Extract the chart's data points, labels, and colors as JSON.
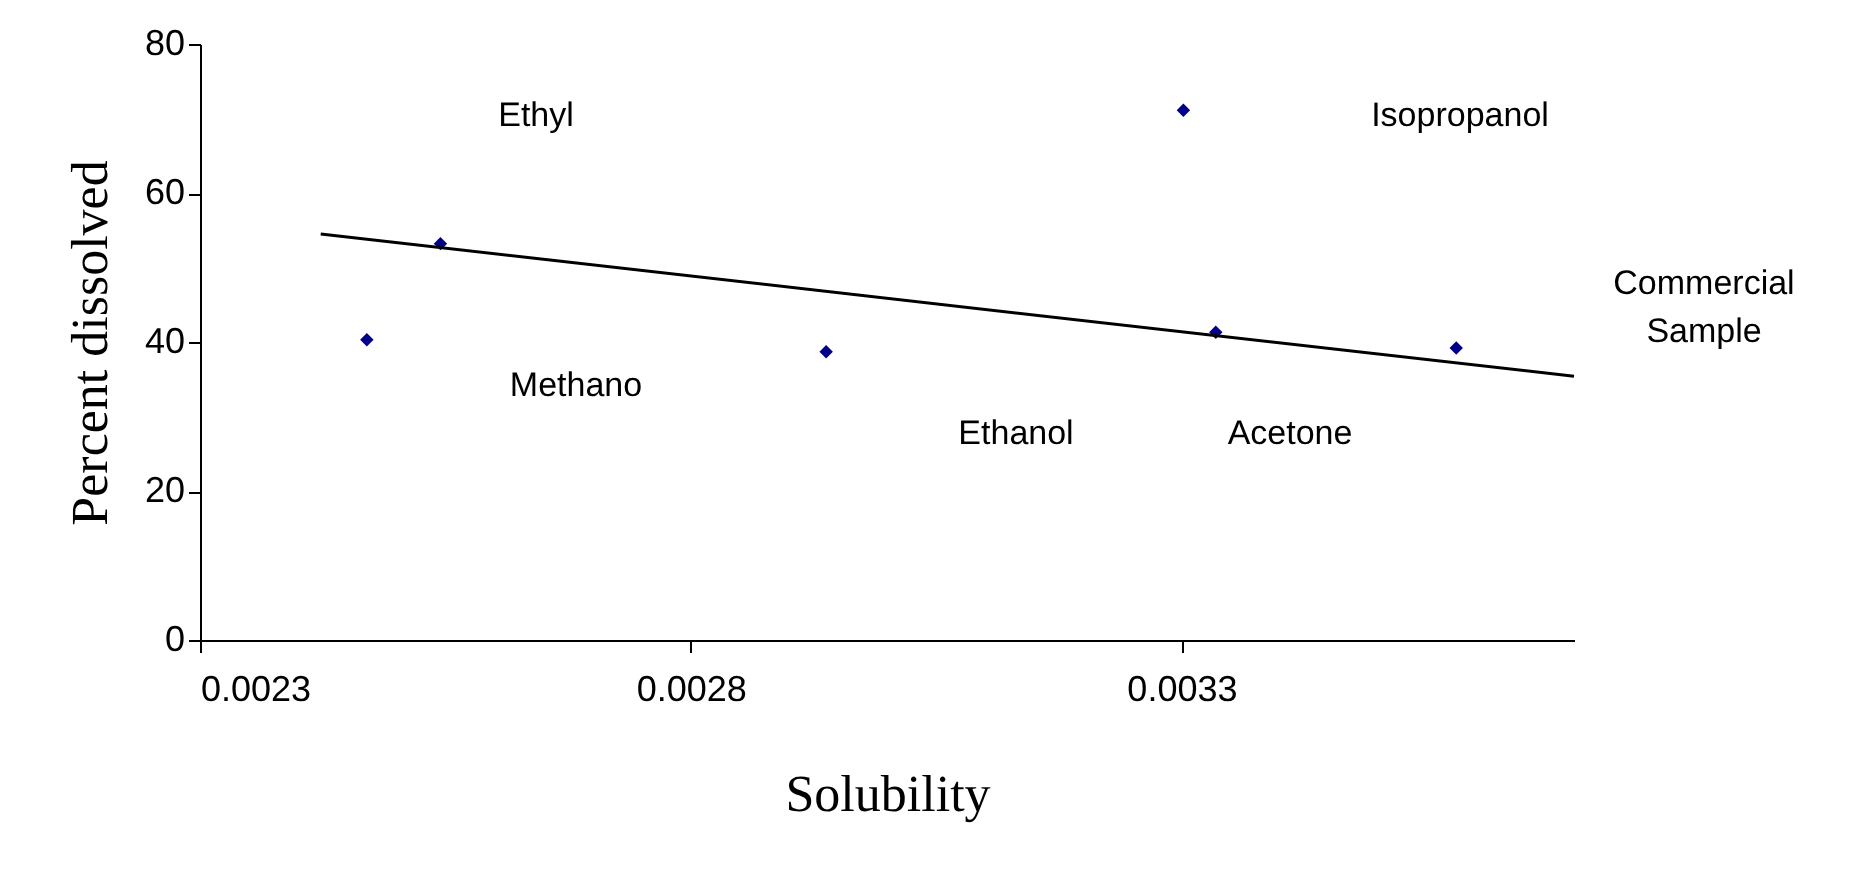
{
  "chart_data": {
    "type": "scatter",
    "xlabel": "Solubility",
    "ylabel": "Percent dissolved",
    "xlim": [
      0.0023,
      0.0037
    ],
    "xticks": [
      0.0023,
      0.0028,
      0.0033
    ],
    "ylim": [
      0,
      80
    ],
    "yticks": [
      0,
      20,
      40,
      60,
      80
    ],
    "grid": false,
    "series": [
      {
        "color": "#00008b",
        "marker": "diamond",
        "x": [
          0.00247,
          0.002545,
          0.002938,
          0.003302,
          0.003335,
          0.00358
        ],
        "values": [
          40.3,
          53.2,
          38.7,
          71.1,
          41.3,
          39.2
        ]
      },
      {
        "type": "line",
        "color": "#000000",
        "x": [
          0.002423,
          0.0037
        ],
        "values": [
          54.5,
          35.4
        ]
      }
    ],
    "annotations": [
      "Ethyl",
      "Methano",
      "Ethanol",
      "Acetone",
      "Isopropanol",
      "Commercial\nSample"
    ]
  }
}
